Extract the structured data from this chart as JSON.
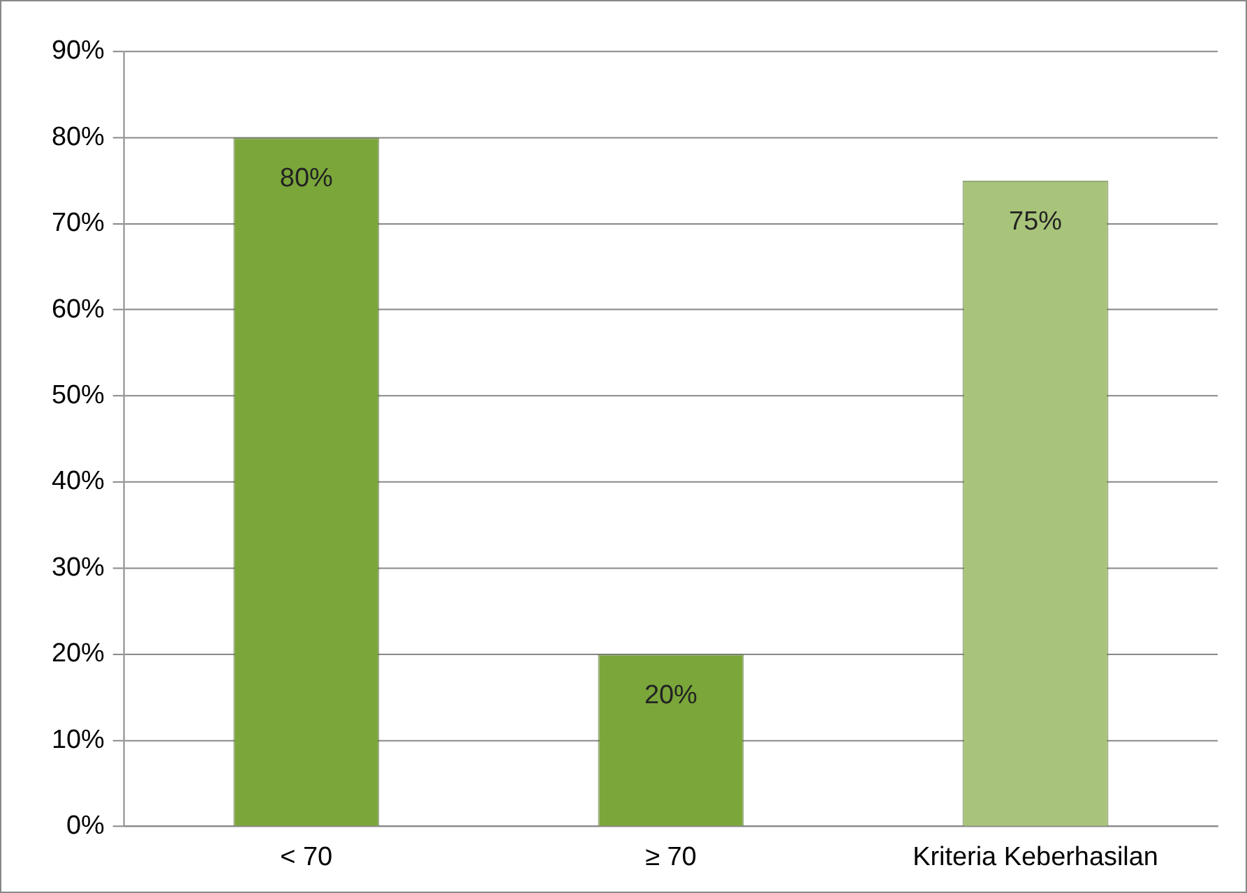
{
  "chart_data": {
    "type": "bar",
    "categories": [
      "< 70",
      "≥ 70",
      "Kriteria Keberhasilan"
    ],
    "values": [
      80,
      20,
      75
    ],
    "colors": [
      "#7aa63a",
      "#7aa63a",
      "#a8c47a"
    ],
    "value_labels": [
      "80%",
      "20%",
      "75%"
    ],
    "ylim": [
      0,
      90
    ],
    "yticks": [
      {
        "value": 0,
        "label": "0%"
      },
      {
        "value": 10,
        "label": "10%"
      },
      {
        "value": 20,
        "label": "20%"
      },
      {
        "value": 30,
        "label": "30%"
      },
      {
        "value": 40,
        "label": "40%"
      },
      {
        "value": 50,
        "label": "50%"
      },
      {
        "value": 60,
        "label": "60%"
      },
      {
        "value": 70,
        "label": "70%"
      },
      {
        "value": 80,
        "label": "80%"
      },
      {
        "value": 90,
        "label": "90%"
      }
    ],
    "grid": "y",
    "legend": false
  }
}
